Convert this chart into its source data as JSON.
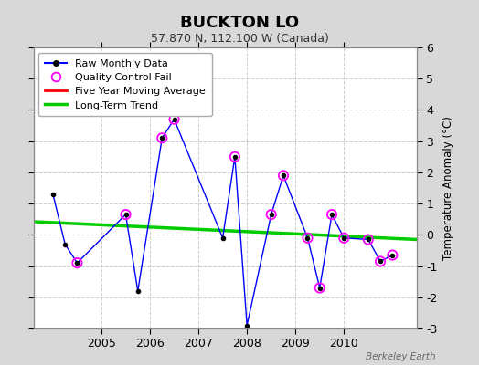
{
  "title": "BUCKTON LO",
  "subtitle": "57.870 N, 112.100 W (Canada)",
  "ylabel": "Temperature Anomaly (°C)",
  "watermark": "Berkeley Earth",
  "background_color": "#d8d8d8",
  "plot_bg_color": "#ffffff",
  "ylim": [
    -3,
    6
  ],
  "yticks": [
    -3,
    -2,
    -1,
    0,
    1,
    2,
    3,
    4,
    5,
    6
  ],
  "xlim": [
    2003.6,
    2011.5
  ],
  "raw_x": [
    2004.0,
    2004.25,
    2004.5,
    2005.5,
    2005.75,
    2006.25,
    2006.5,
    2007.5,
    2007.75,
    2008.0,
    2008.5,
    2008.75,
    2009.25,
    2009.5,
    2009.75,
    2010.0,
    2010.5,
    2010.75,
    2011.0
  ],
  "raw_y": [
    1.3,
    -0.3,
    -0.9,
    0.65,
    -1.8,
    3.1,
    3.7,
    -0.1,
    2.5,
    -2.9,
    0.65,
    1.9,
    -0.1,
    -1.7,
    0.65,
    -0.1,
    -0.15,
    -0.85,
    -0.65
  ],
  "qc_x": [
    2004.5,
    2005.5,
    2006.25,
    2006.5,
    2007.75,
    2008.5,
    2008.75,
    2009.25,
    2009.5,
    2009.75,
    2010.0,
    2010.5,
    2010.75,
    2011.0
  ],
  "qc_y": [
    -0.9,
    0.65,
    3.1,
    3.7,
    2.5,
    0.65,
    1.9,
    -0.1,
    -1.7,
    0.65,
    -0.1,
    -0.15,
    -0.85,
    -0.65
  ],
  "trend_x": [
    2003.6,
    2011.5
  ],
  "trend_y": [
    0.42,
    -0.15
  ],
  "raw_line_color": "#0000ff",
  "raw_marker_color": "#000000",
  "qc_marker_color": "#ff00ff",
  "trend_color": "#00cc00",
  "mavg_color": "#ff0000",
  "grid_color": "#cccccc",
  "xticks": [
    2005,
    2006,
    2007,
    2008,
    2009,
    2010
  ],
  "legend_items": [
    "Raw Monthly Data",
    "Quality Control Fail",
    "Five Year Moving Average",
    "Long-Term Trend"
  ]
}
